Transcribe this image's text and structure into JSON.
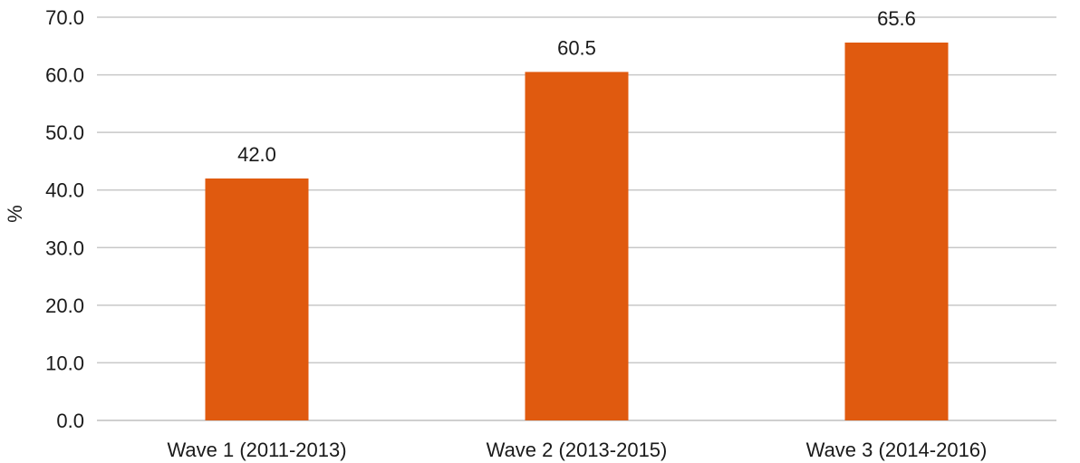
{
  "chart_data": {
    "type": "bar",
    "categories": [
      "Wave 1 (2011-2013)",
      "Wave 2 (2013-2015)",
      "Wave 3 (2014-2016)"
    ],
    "values": [
      42.0,
      60.5,
      65.6
    ],
    "value_labels": [
      "42.0",
      "60.5",
      "65.6"
    ],
    "title": "",
    "xlabel": "",
    "ylabel": "%",
    "ylim": [
      0,
      70
    ],
    "yticks": [
      0,
      10,
      20,
      30,
      40,
      50,
      60,
      70
    ],
    "ytick_labels": [
      "0.0",
      "10.0",
      "20.0",
      "30.0",
      "40.0",
      "50.0",
      "60.0",
      "70.0"
    ],
    "grid": true,
    "legend": "none",
    "bar_color": "#E05A0F"
  }
}
